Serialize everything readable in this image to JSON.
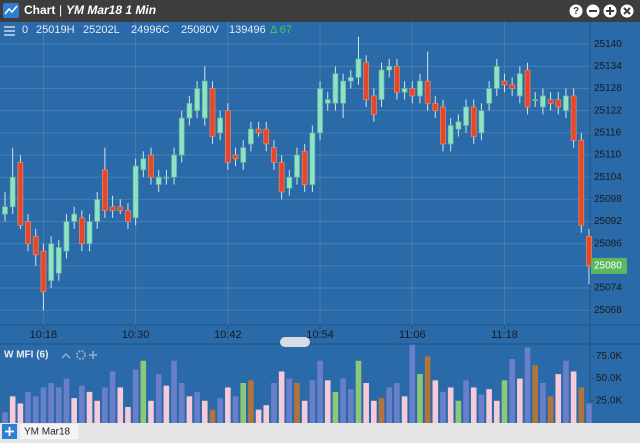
{
  "header": {
    "app": "Chart",
    "separator": "|",
    "symbol_period": "YM Mar18 1 Min"
  },
  "chart_data": [
    {
      "type": "candlestick",
      "info": [
        "0",
        "25019H",
        "25202L",
        "24996C",
        "25080V",
        "139496",
        "Δ 67"
      ],
      "categories": [
        null,
        null,
        null,
        null,
        null,
        "10:18",
        null,
        null,
        null,
        null,
        null,
        null,
        null,
        null,
        null,
        null,
        null,
        "10:30",
        null,
        null,
        null,
        null,
        null,
        null,
        null,
        null,
        null,
        null,
        null,
        "10:42",
        null,
        null,
        null,
        null,
        null,
        null,
        null,
        null,
        null,
        null,
        null,
        "10:54",
        null,
        null,
        null,
        null,
        null,
        null,
        null,
        null,
        null,
        null,
        null,
        "11:06",
        null,
        null,
        null,
        null,
        null,
        null,
        null,
        null,
        null,
        null,
        null,
        "11:18",
        null,
        null,
        null,
        null,
        null,
        null,
        null,
        null,
        null,
        null,
        null
      ],
      "open": [
        25094,
        25096,
        25108,
        25092,
        25088,
        25084,
        25076,
        25078,
        25084,
        25092,
        25093,
        25086,
        25092,
        25106,
        25096,
        25096,
        25095,
        25093,
        25106,
        25110,
        25102,
        25104,
        25104,
        25110,
        25120,
        25122,
        25120,
        25128,
        25116,
        25122,
        25110,
        25108,
        25113,
        25117,
        25117,
        25112,
        25108,
        25101,
        25104,
        25111,
        25102,
        25116,
        25124,
        25124,
        25124,
        25130,
        25131,
        25135,
        25126,
        25125,
        25133,
        25134,
        25127,
        25128,
        25126,
        25130,
        25124,
        25123,
        25113,
        25117,
        25118,
        25123,
        25116,
        25124,
        25128,
        25130,
        25129,
        25126,
        25133,
        25125,
        25123,
        25125,
        25125,
        25122,
        25126,
        25114,
        25088
      ],
      "high": [
        25100,
        25112,
        25110,
        25094,
        25090,
        25086,
        25088,
        25087,
        25094,
        25096,
        25095,
        25094,
        25100,
        25112,
        25099,
        25098,
        25097,
        25109,
        25111,
        25112,
        25106,
        25106,
        25112,
        25122,
        25126,
        25130,
        25134,
        25130,
        25122,
        25124,
        25112,
        25114,
        25119,
        25119,
        25119,
        25114,
        25110,
        25106,
        25112,
        25113,
        25118,
        25130,
        25127,
        25134,
        25132,
        25133,
        25142,
        25137,
        25128,
        25135,
        25136,
        25136,
        25130,
        25130,
        25132,
        25138,
        25126,
        25125,
        25120,
        25121,
        25125,
        25125,
        25124,
        25130,
        25136,
        25132,
        25131,
        25134,
        25135,
        25127,
        25128,
        25127,
        25127,
        25128,
        25128,
        25116,
        25090
      ],
      "low": [
        25092,
        25094,
        25090,
        25084,
        25080,
        25068,
        25074,
        25076,
        25082,
        25090,
        25084,
        25084,
        25090,
        25093,
        25093,
        25094,
        25090,
        25091,
        25104,
        25102,
        25100,
        25102,
        25102,
        25108,
        25118,
        25120,
        25118,
        25113,
        25114,
        25106,
        25107,
        25106,
        25111,
        25115,
        25111,
        25106,
        25098,
        25099,
        25102,
        25100,
        25100,
        25114,
        25122,
        25122,
        25120,
        25128,
        25129,
        25123,
        25119,
        25123,
        25131,
        25125,
        25125,
        25124,
        25124,
        25122,
        25120,
        25111,
        25111,
        25115,
        25116,
        25113,
        25114,
        25122,
        25126,
        25127,
        25126,
        25124,
        25121,
        25123,
        25121,
        25122,
        25121,
        25120,
        25112,
        25089,
        25075
      ],
      "close": [
        25096,
        25104,
        25091,
        25086,
        25083,
        25073,
        25086,
        25085,
        25092,
        25094,
        25086,
        25092,
        25098,
        25095,
        25095,
        25095,
        25092,
        25107,
        25109,
        25104,
        25104,
        25104,
        25110,
        25120,
        25124,
        25128,
        25130,
        25115,
        25120,
        25108,
        25109,
        25112,
        25117,
        25116,
        25113,
        25108,
        25100,
        25104,
        25110,
        25102,
        25116,
        25128,
        25125,
        25132,
        25130,
        25131,
        25136,
        25125,
        25121,
        25133,
        25134,
        25127,
        25128,
        25126,
        25130,
        25124,
        25122,
        25113,
        25118,
        25119,
        25123,
        25115,
        25122,
        25128,
        25134,
        25129,
        25128,
        25132,
        25123,
        25125,
        25126,
        25124,
        25123,
        25126,
        25114,
        25091,
        25080
      ],
      "up_color": "#8fe3c4",
      "down_color": "#e5462c",
      "last_price": 25080,
      "last_price_color": "#5cb85c",
      "ylim": [
        25064,
        25146
      ],
      "yticks": [
        25140,
        25134,
        25128,
        25122,
        25116,
        25110,
        25104,
        25098,
        25092,
        25086,
        25080,
        25074,
        25068
      ],
      "grid": true
    },
    {
      "type": "bar",
      "title": "W MFI (6)",
      "values": [
        12000,
        30000,
        22000,
        35000,
        30000,
        40000,
        45000,
        40000,
        50000,
        28000,
        42000,
        35000,
        25000,
        40000,
        58000,
        40000,
        18000,
        60000,
        70000,
        25000,
        55000,
        42000,
        70000,
        45000,
        30000,
        35000,
        25000,
        15000,
        28000,
        40000,
        30000,
        45000,
        48000,
        15000,
        20000,
        45000,
        58000,
        50000,
        45000,
        25000,
        48000,
        70000,
        48000,
        35000,
        50000,
        38000,
        70000,
        45000,
        25000,
        28000,
        40000,
        45000,
        30000,
        88000,
        55000,
        75000,
        48000,
        35000,
        40000,
        25000,
        48000,
        40000,
        32000,
        38000,
        25000,
        48000,
        72000,
        50000,
        85000,
        65000,
        45000,
        30000,
        55000,
        70000,
        58000,
        40000,
        22000
      ],
      "colors": [
        "#6a7fc9",
        "#f6cad8",
        "#f6cad8",
        "#6a7fc9",
        "#6a7fc9",
        "#6a7fc9",
        "#6a7fc9",
        "#6a7fc9",
        "#6a7fc9",
        "#f6cad8",
        "#6a7fc9",
        "#f6cad8",
        "#f6cad8",
        "#6a7fc9",
        "#6a7fc9",
        "#f6cad8",
        "#f6cad8",
        "#6a7fc9",
        "#8cc77a",
        "#f6cad8",
        "#6a7fc9",
        "#f6cad8",
        "#6a7fc9",
        "#6a7fc9",
        "#f6cad8",
        "#6a7fc9",
        "#f6cad8",
        "#b0743c",
        "#6a7fc9",
        "#f6cad8",
        "#6a7fc9",
        "#8cc77a",
        "#b0743c",
        "#f6cad8",
        "#f6cad8",
        "#6a7fc9",
        "#f6cad8",
        "#6a7fc9",
        "#b0743c",
        "#f6cad8",
        "#6a7fc9",
        "#6a7fc9",
        "#f6cad8",
        "#8cc77a",
        "#6a7fc9",
        "#6a7fc9",
        "#8cc77a",
        "#f6cad8",
        "#f6cad8",
        "#b0743c",
        "#6a7fc9",
        "#6a7fc9",
        "#f6cad8",
        "#6a7fc9",
        "#8cc77a",
        "#b0743c",
        "#f6cad8",
        "#6a7fc9",
        "#f6cad8",
        "#8cc77a",
        "#6a7fc9",
        "#f6cad8",
        "#6a7fc9",
        "#f6cad8",
        "#f6cad8",
        "#8cc77a",
        "#6a7fc9",
        "#f6cad8",
        "#6a7fc9",
        "#b0743c",
        "#6a7fc9",
        "#b0743c",
        "#f6cad8",
        "#6a7fc9",
        "#f6cad8",
        "#b0743c",
        "#6a7fc9"
      ],
      "ylim": [
        0,
        90000
      ],
      "yticks": [
        {
          "value": 25000,
          "label": "25.0K"
        },
        {
          "value": 50000,
          "label": "50.0K"
        },
        {
          "value": 75000,
          "label": "75.0K"
        }
      ]
    }
  ],
  "footer": {
    "tab": "YM Mar18"
  }
}
